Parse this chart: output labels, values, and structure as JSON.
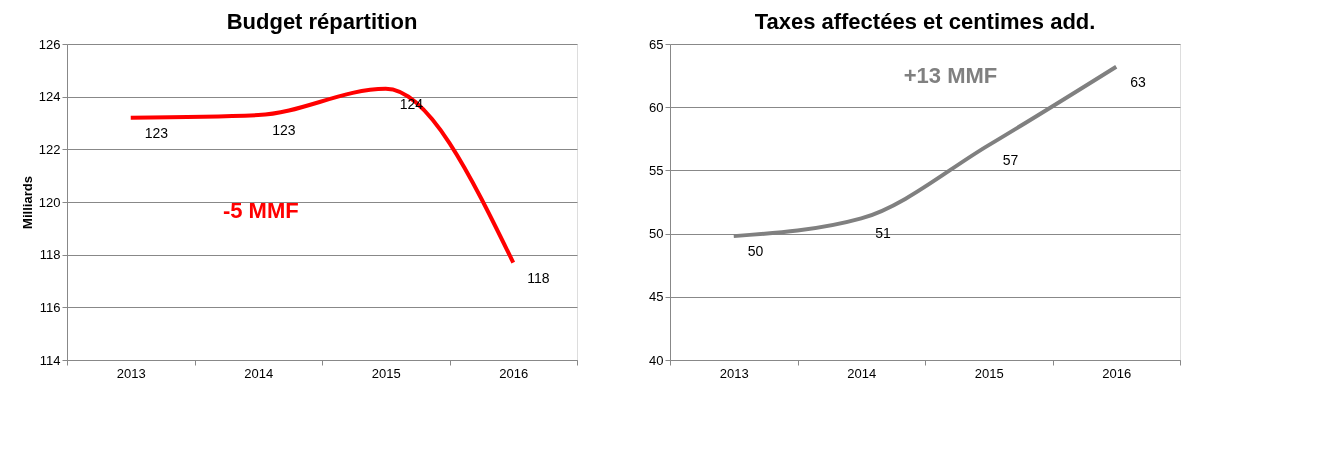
{
  "chart_data": [
    {
      "type": "line",
      "title": "Budget répartition",
      "ylabel": "Milliards",
      "categories": [
        "2013",
        "2014",
        "2015",
        "2016"
      ],
      "series": [
        {
          "color": "#ff0000",
          "values": [
            123.2,
            123.3,
            124.3,
            117.7
          ],
          "value_labels": [
            "123",
            "123",
            "124",
            "118"
          ]
        }
      ],
      "ylim": [
        114,
        126
      ],
      "yticks": [
        114,
        116,
        118,
        120,
        122,
        124,
        126
      ],
      "grid": "y",
      "marker": "none",
      "line_style": "solid",
      "annotations": [
        "-5 MMF"
      ]
    },
    {
      "type": "line",
      "title": "Taxes affectées et centimes add.",
      "categories": [
        "2013",
        "2014",
        "2015",
        "2016"
      ],
      "series": [
        {
          "color": "#808080",
          "values": [
            49.8,
            51.2,
            57.0,
            63.2
          ],
          "value_labels": [
            "50",
            "51",
            "57",
            "63"
          ]
        }
      ],
      "ylim": [
        40,
        65
      ],
      "yticks": [
        40,
        45,
        50,
        55,
        60,
        65
      ],
      "grid": "y",
      "marker": "none",
      "line_style": "solid",
      "annotations": [
        "+13 MMF"
      ]
    }
  ]
}
